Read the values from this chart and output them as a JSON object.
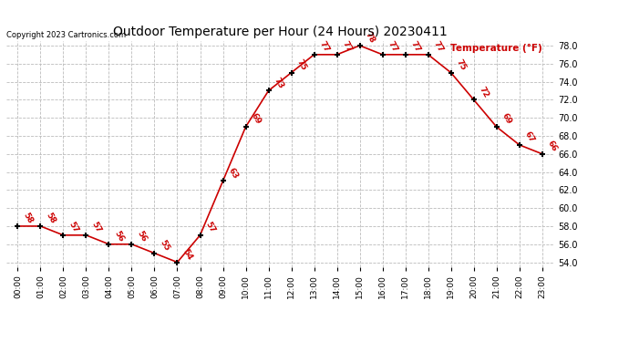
{
  "title": "Outdoor Temperature per Hour (24 Hours) 20230411",
  "copyright": "Copyright 2023 Cartronics.com",
  "legend_label": "Temperature (°F)",
  "hours": [
    0,
    1,
    2,
    3,
    4,
    5,
    6,
    7,
    8,
    9,
    10,
    11,
    12,
    13,
    14,
    15,
    16,
    17,
    18,
    19,
    20,
    21,
    22,
    23
  ],
  "temps": [
    58,
    58,
    57,
    57,
    56,
    56,
    55,
    54,
    57,
    63,
    69,
    73,
    75,
    77,
    77,
    78,
    77,
    77,
    77,
    75,
    72,
    69,
    67,
    66
  ],
  "hour_labels": [
    "00:00",
    "01:00",
    "02:00",
    "03:00",
    "04:00",
    "05:00",
    "06:00",
    "07:00",
    "08:00",
    "09:00",
    "10:00",
    "11:00",
    "12:00",
    "13:00",
    "14:00",
    "15:00",
    "16:00",
    "17:00",
    "18:00",
    "19:00",
    "20:00",
    "21:00",
    "22:00",
    "23:00"
  ],
  "ylim": [
    53.5,
    78.5
  ],
  "yticks": [
    54.0,
    56.0,
    58.0,
    60.0,
    62.0,
    64.0,
    66.0,
    68.0,
    70.0,
    72.0,
    74.0,
    76.0,
    78.0
  ],
  "line_color": "#cc0000",
  "marker": "+",
  "label_color": "#cc0000",
  "bg_color": "#ffffff",
  "grid_color": "#bbbbbb",
  "title_color": "#000000",
  "copyright_color": "#000000",
  "legend_color": "#cc0000"
}
